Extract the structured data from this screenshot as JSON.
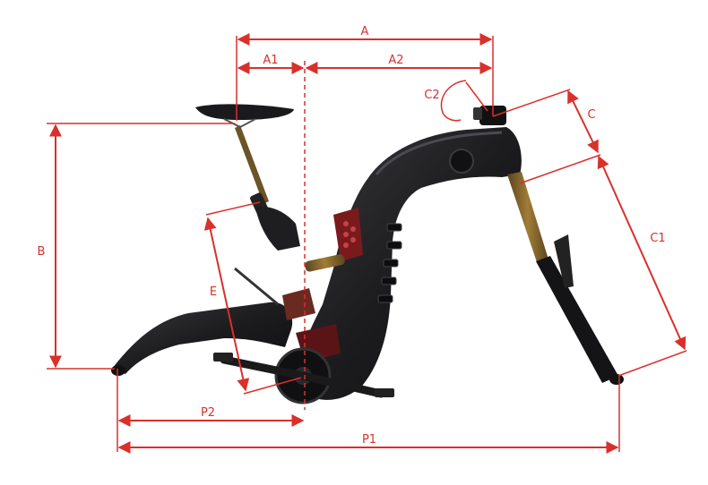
{
  "colors": {
    "dimension": "#d9302c",
    "frame": "#1c1c1e",
    "frame_shade": "#2b2b2e",
    "accent_red": "#7a1a1c",
    "suspension_gold": "#8a6a2c",
    "background": "#ffffff"
  },
  "labels": {
    "a": "A",
    "a1": "A1",
    "a2": "A2",
    "b": "B",
    "c": "C",
    "c1": "C1",
    "c2": "C2",
    "e": "E",
    "p1": "P1",
    "p2": "P2"
  }
}
